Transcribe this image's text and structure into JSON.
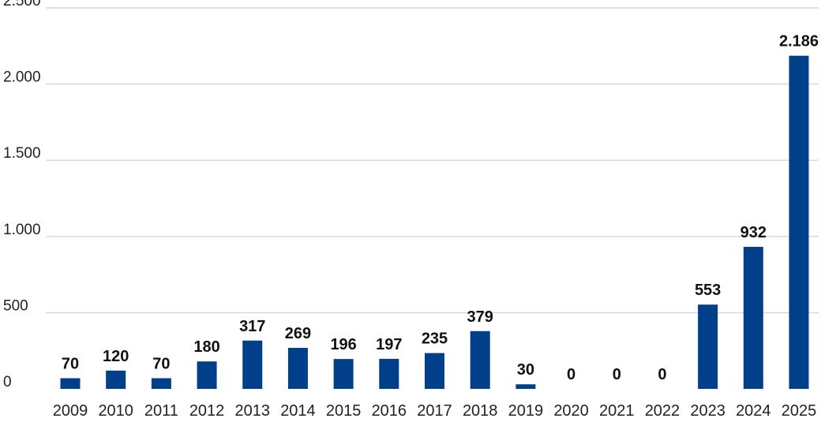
{
  "chart_data": {
    "type": "bar",
    "categories": [
      "2009",
      "2010",
      "2011",
      "2012",
      "2013",
      "2014",
      "2015",
      "2016",
      "2017",
      "2018",
      "2019",
      "2020",
      "2021",
      "2022",
      "2023",
      "2024",
      "2025"
    ],
    "values": [
      70,
      120,
      70,
      180,
      317,
      269,
      196,
      197,
      235,
      379,
      30,
      0,
      0,
      0,
      553,
      932,
      2186
    ],
    "value_labels": [
      "70",
      "120",
      "70",
      "180",
      "317",
      "269",
      "196",
      "197",
      "235",
      "379",
      "30",
      "0",
      "0",
      "0",
      "553",
      "932",
      "2.186"
    ],
    "yticks": [
      0,
      500,
      1000,
      1500,
      2000,
      2500
    ],
    "ytick_labels": [
      "0",
      "500",
      "1.000",
      "1.500",
      "2.000",
      "2.500"
    ],
    "ylim": [
      0,
      2500
    ],
    "title": "",
    "xlabel": "",
    "ylabel": "",
    "grid": true,
    "bar_color": "#003f8a"
  }
}
